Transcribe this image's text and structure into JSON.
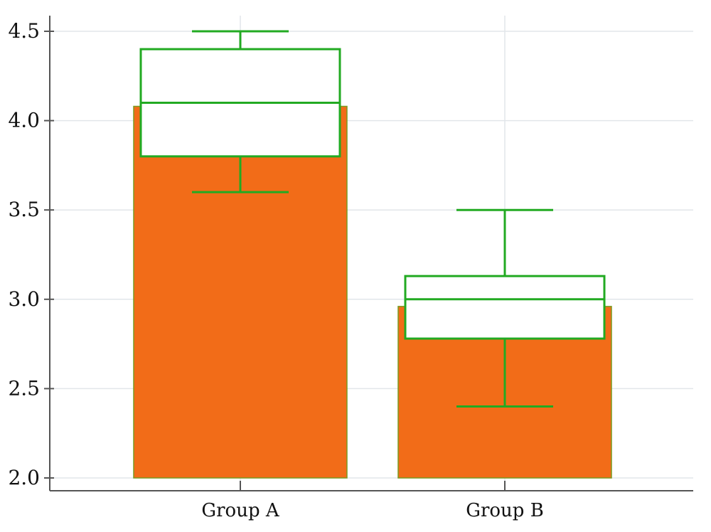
{
  "chart_data": {
    "type": "bar",
    "categories": [
      "Group A",
      "Group B"
    ],
    "values": [
      4.08,
      2.96
    ],
    "boxes": [
      {
        "category": "Group A",
        "whisker_low": 3.6,
        "q1": 3.8,
        "median": 4.1,
        "q3": 4.4,
        "whisker_high": 4.5
      },
      {
        "category": "Group B",
        "whisker_low": 2.4,
        "q1": 2.78,
        "median": 3.0,
        "q3": 3.13,
        "whisker_high": 3.5
      }
    ],
    "title": "",
    "xlabel": "",
    "ylabel": "",
    "ylim": [
      2.0,
      4.5
    ],
    "yticks": [
      "2.0",
      "2.5",
      "3.0",
      "3.5",
      "4.0",
      "4.5"
    ],
    "grid": true,
    "colors": {
      "bar": "#f26c18",
      "box": "#22aa22",
      "grid": "#e2e6ea",
      "axis": "#555555"
    }
  }
}
